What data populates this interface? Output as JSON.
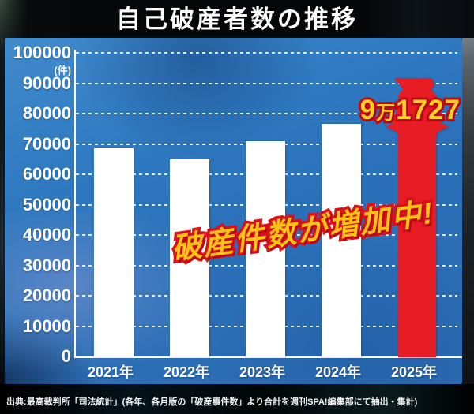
{
  "title": "自己破産者数の推移",
  "source": "出典:最高裁判所「司法統計」(各年、各月版の「破産事件数」より合計を週刊SPA!編集部にて抽出・集計)",
  "annotations": {
    "slogan": "破産件数が増加中!",
    "peak": {
      "man_count": "9",
      "man_unit": "万",
      "rest": "1727",
      "full": "9万1727"
    }
  },
  "colors": {
    "panel_blue": "#2e74bd",
    "bar_white": "#ffffff",
    "highlight_red": "#e81c25",
    "label_yellow": "#ffd21e",
    "outline_red": "#d8121e",
    "axis_white": "#ffffff"
  },
  "chart_data": {
    "type": "bar",
    "title": "自己破産者数の推移",
    "categories": [
      "2021年",
      "2022年",
      "2023年",
      "2024年",
      "2025年"
    ],
    "values": [
      68500,
      65000,
      71000,
      76500,
      91727
    ],
    "unit_label": "(件)",
    "ylim": [
      0,
      100000
    ],
    "ytick_step": 10000,
    "grid": "dashed-horizontal",
    "legend": "none",
    "highlight": {
      "index": 4,
      "style": "red-up-arrow",
      "label": "9万1727"
    }
  }
}
